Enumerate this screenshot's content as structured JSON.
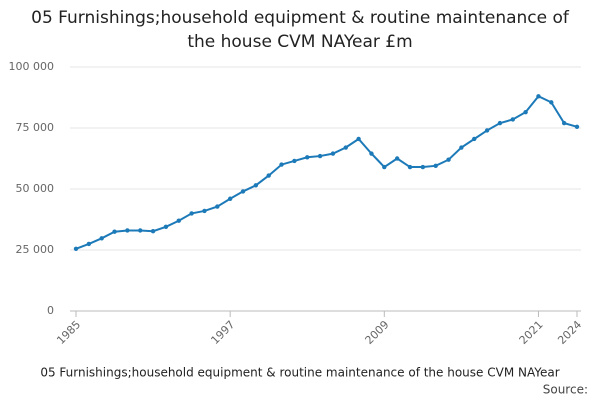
{
  "chart_data": {
    "type": "line",
    "title": "05 Furnishings;household equipment & routine maintenance of the house CVM NAYear £m",
    "x_label": "05 Furnishings;household equipment & routine maintenance of the house CVM NAYear",
    "source": "Source:",
    "x": [
      1985,
      1986,
      1987,
      1988,
      1989,
      1990,
      1991,
      1992,
      1993,
      1994,
      1995,
      1996,
      1997,
      1998,
      1999,
      2000,
      2001,
      2002,
      2003,
      2004,
      2005,
      2006,
      2007,
      2008,
      2009,
      2010,
      2011,
      2012,
      2013,
      2014,
      2015,
      2016,
      2017,
      2018,
      2019,
      2020,
      2021,
      2022,
      2023,
      2024
    ],
    "series": [
      {
        "color": "#1d7ab8",
        "values": [
          25500,
          27500,
          29800,
          32500,
          33000,
          33000,
          32700,
          34500,
          37000,
          40000,
          41000,
          42800,
          46000,
          49000,
          51500,
          55500,
          60000,
          61500,
          63000,
          63500,
          64500,
          67000,
          70500,
          64500,
          59000,
          62500,
          59000,
          59000,
          59500,
          62000,
          67000,
          70500,
          74000,
          77000,
          78500,
          81500,
          88000,
          85500,
          77000,
          75500
        ]
      }
    ],
    "xlim": [
      1985,
      2024
    ],
    "xticks": [
      1985,
      1997,
      2009,
      2021,
      2024
    ],
    "ylim": [
      0,
      100000
    ],
    "yticks": [
      0,
      {
        "value": 25000,
        "label": "25 000"
      },
      {
        "value": 50000,
        "label": "50 000"
      },
      {
        "value": 75000,
        "label": "75 000"
      },
      {
        "value": 100000,
        "label": "100 000"
      }
    ],
    "grid": true
  }
}
